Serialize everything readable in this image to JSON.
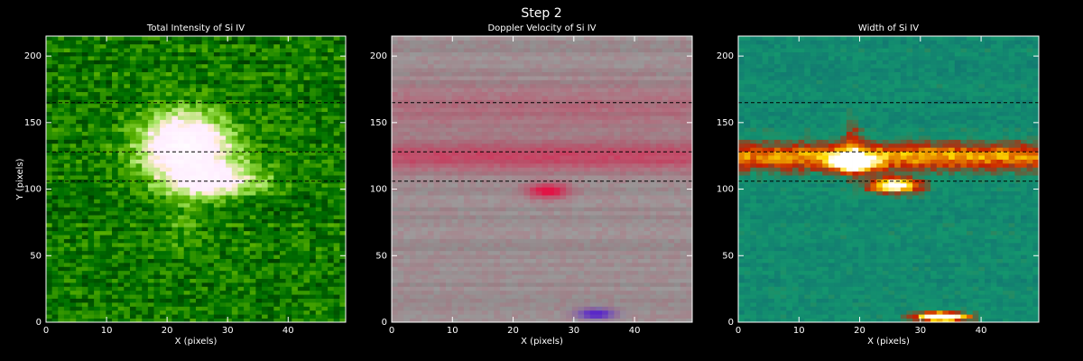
{
  "title": "Step 2",
  "chart_data": [
    {
      "type": "heatmap",
      "title": "Total Intensity of Si IV",
      "xlabel": "X (pixels)",
      "ylabel": "Y (pixels)",
      "xlim": [
        0,
        49.5
      ],
      "ylim": [
        0,
        215
      ],
      "xticks": [
        0,
        10,
        20,
        30,
        40
      ],
      "yticks": [
        0,
        50,
        100,
        150,
        200
      ],
      "dashed_lines": [
        165,
        128,
        106
      ]
    },
    {
      "type": "heatmap",
      "title": "Doppler Velocity of Si IV",
      "xlabel": "X (pixels)",
      "xlim": [
        0,
        49.5
      ],
      "ylim": [
        0,
        215
      ],
      "xticks": [
        0,
        10,
        20,
        30,
        40
      ],
      "yticks": [
        0,
        50,
        100,
        150,
        200
      ],
      "dashed_lines": [
        165,
        128,
        106
      ]
    },
    {
      "type": "heatmap",
      "title": "Width of Si IV",
      "xlabel": "X (pixels)",
      "xlim": [
        0,
        49.5
      ],
      "ylim": [
        0,
        215
      ],
      "xticks": [
        0,
        10,
        20,
        30,
        40
      ],
      "yticks": [
        0,
        50,
        100,
        150,
        200
      ],
      "dashed_lines": [
        165,
        128,
        106
      ]
    }
  ]
}
